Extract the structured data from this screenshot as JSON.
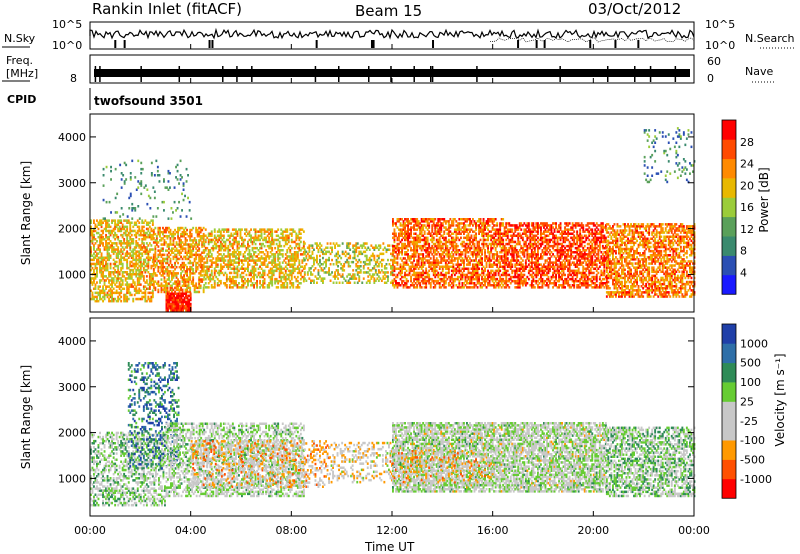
{
  "header": {
    "title": "Rankin Inlet (fitACF)",
    "beam": "Beam 15",
    "date": "03/Oct/2012"
  },
  "nsky_panel": {
    "left_label": "N.Sky",
    "right_label": "N.Search",
    "ticks": [
      "10^5",
      "10^0"
    ]
  },
  "freq_panel": {
    "left_label_line1": "Freq.",
    "left_label_line2": "[MHz]",
    "left_tick": "8",
    "right_label": "Nave",
    "right_ticks": [
      "60",
      "0"
    ]
  },
  "cpid": {
    "label": "CPID",
    "value": "twofsound 3501"
  },
  "xaxis": {
    "label": "Time UT",
    "ticks": [
      "00:00",
      "04:00",
      "08:00",
      "12:00",
      "16:00",
      "20:00",
      "00:00"
    ]
  },
  "power_panel": {
    "ylabel": "Slant Range [km]",
    "yticks": [
      "1000",
      "2000",
      "3000",
      "4000"
    ],
    "colorbar_label": "Power [dB]",
    "colorbar_ticks": [
      "4",
      "8",
      "12",
      "16",
      "20",
      "24",
      "28"
    ]
  },
  "velocity_panel": {
    "ylabel": "Slant Range [km]",
    "yticks": [
      "1000",
      "2000",
      "3000",
      "4000"
    ],
    "colorbar_label": "Velocity [m s⁻¹]",
    "colorbar_ticks": [
      "1000",
      "500",
      "100",
      "25",
      "-25",
      "-100",
      "-500",
      "-1000"
    ]
  },
  "chart_data": [
    {
      "type": "heatmap",
      "name": "power",
      "x_range_hours": [
        0,
        24
      ],
      "ylim": [
        180,
        4500
      ],
      "colorbar_range": [
        0,
        32
      ],
      "colors": [
        "#1a1aff",
        "#2b4fb3",
        "#3a8a6e",
        "#5aa05a",
        "#9bcc3a",
        "#e8b800",
        "#ff8a00",
        "#ff4a00",
        "#ff0000"
      ],
      "regions": [
        {
          "t0": 0.0,
          "t1": 2.5,
          "r0": 400,
          "r1": 2200,
          "level": 20,
          "density": 0.55
        },
        {
          "t0": 2.5,
          "t1": 4.5,
          "r0": 600,
          "r1": 2000,
          "level": 22,
          "density": 0.55
        },
        {
          "t0": 3.0,
          "t1": 4.0,
          "r0": 200,
          "r1": 600,
          "level": 30,
          "density": 0.9
        },
        {
          "t0": 4.5,
          "t1": 8.5,
          "r0": 700,
          "r1": 2000,
          "level": 20,
          "density": 0.5
        },
        {
          "t0": 8.5,
          "t1": 12.0,
          "r0": 800,
          "r1": 1700,
          "level": 18,
          "density": 0.35
        },
        {
          "t0": 12.0,
          "t1": 16.5,
          "r0": 700,
          "r1": 2200,
          "level": 25,
          "density": 0.6
        },
        {
          "t0": 16.5,
          "t1": 20.5,
          "r0": 700,
          "r1": 2100,
          "level": 27,
          "density": 0.6
        },
        {
          "t0": 20.5,
          "t1": 24.0,
          "r0": 500,
          "r1": 2100,
          "level": 24,
          "density": 0.6
        },
        {
          "t0": 0.5,
          "t1": 4.0,
          "r0": 2200,
          "r1": 3500,
          "level": 10,
          "density": 0.08
        },
        {
          "t0": 22.0,
          "t1": 24.0,
          "r0": 3000,
          "r1": 4200,
          "level": 10,
          "density": 0.1
        }
      ]
    },
    {
      "type": "heatmap",
      "name": "velocity",
      "x_range_hours": [
        0,
        24
      ],
      "ylim": [
        180,
        4500
      ],
      "colorbar_range": [
        -1000,
        1000
      ],
      "colors": [
        "#ff0000",
        "#ff5000",
        "#ff9900",
        "#c8c8c8",
        "#c8c8c8",
        "#66cc33",
        "#2e8b57",
        "#2e6fa8",
        "#1f3fa8"
      ],
      "regions": [
        {
          "t0": 0.0,
          "t1": 3.0,
          "r0": 400,
          "r1": 2000,
          "level": 100,
          "density": 0.45
        },
        {
          "t0": 1.5,
          "t1": 3.5,
          "r0": 1200,
          "r1": 3500,
          "level": 600,
          "density": 0.25
        },
        {
          "t0": 3.0,
          "t1": 8.5,
          "r0": 600,
          "r1": 2200,
          "level": 30,
          "density": 0.5
        },
        {
          "t0": 4.0,
          "t1": 9.5,
          "r0": 800,
          "r1": 1800,
          "level": -300,
          "density": 0.3
        },
        {
          "t0": 9.5,
          "t1": 12.0,
          "r0": 900,
          "r1": 1800,
          "level": -200,
          "density": 0.3
        },
        {
          "t0": 12.0,
          "t1": 20.5,
          "r0": 700,
          "r1": 2200,
          "level": 0,
          "density": 0.7
        },
        {
          "t0": 12.0,
          "t1": 16.0,
          "r0": 900,
          "r1": 1600,
          "level": -300,
          "density": 0.25
        },
        {
          "t0": 20.5,
          "t1": 24.0,
          "r0": 600,
          "r1": 2100,
          "level": 150,
          "density": 0.55
        }
      ]
    }
  ]
}
